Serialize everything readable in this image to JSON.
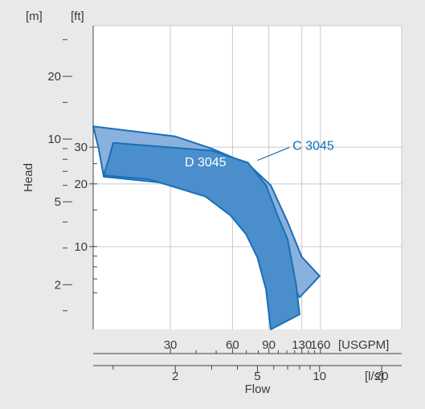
{
  "chart_data": {
    "type": "area",
    "x_axis": {
      "label": "Flow",
      "scale": "log",
      "range_ls": [
        0.8,
        25
      ],
      "primary_unit": "[USGPM]",
      "primary_ticks": [
        30,
        60,
        90,
        130,
        160
      ],
      "secondary_unit": "[l/s]",
      "secondary_ticks": [
        2,
        5,
        10,
        20
      ]
    },
    "y_axis": {
      "label": "Head",
      "scale": "log",
      "range_m": [
        1.22,
        35
      ],
      "primary_unit": "[m]",
      "primary_ticks": [
        2,
        5,
        10,
        20
      ],
      "secondary_unit": "[ft]",
      "secondary_ticks": [
        10,
        20,
        30
      ]
    },
    "grid": true,
    "series": [
      {
        "name": "C 3045",
        "color": "#8ab0dd",
        "edge_color": "#1870b8",
        "polygon_ls_m": [
          [
            0.8,
            11.5
          ],
          [
            2.0,
            10.3
          ],
          [
            3.0,
            9.0
          ],
          [
            4.5,
            7.6
          ],
          [
            5.8,
            6.0
          ],
          [
            7.0,
            4.0
          ],
          [
            8.2,
            2.72
          ],
          [
            10.0,
            2.2
          ],
          [
            8.0,
            1.74
          ],
          [
            7.4,
            2.0
          ],
          [
            6.4,
            3.0
          ],
          [
            5.2,
            4.1
          ],
          [
            4.3,
            4.8
          ],
          [
            3.7,
            5.4
          ],
          [
            2.5,
            5.95
          ],
          [
            0.9,
            6.6
          ],
          [
            0.85,
            9.0
          ]
        ]
      },
      {
        "name": "D 3045",
        "color": "#4a8ecb",
        "edge_color": "#1870b8",
        "polygon_ls_m": [
          [
            1.0,
            9.6
          ],
          [
            3.0,
            8.8
          ],
          [
            4.5,
            7.7
          ],
          [
            5.5,
            6.0
          ],
          [
            6.2,
            4.4
          ],
          [
            7.0,
            3.3
          ],
          [
            7.7,
            2.0
          ],
          [
            8.0,
            1.44
          ],
          [
            5.8,
            1.22
          ],
          [
            5.5,
            1.9
          ],
          [
            5.0,
            2.7
          ],
          [
            4.4,
            3.5
          ],
          [
            3.7,
            4.3
          ],
          [
            2.8,
            5.3
          ],
          [
            1.5,
            6.4
          ],
          [
            0.9,
            6.7
          ],
          [
            0.95,
            8.0
          ]
        ]
      }
    ],
    "annotations": [
      {
        "text": "C 3045",
        "at_ls_m": [
          7.4,
          8.8
        ],
        "pointer_to_ls_m": [
          5.0,
          7.9
        ]
      },
      {
        "text": "D 3045",
        "at_ls_m": [
          2.8,
          7.4
        ]
      }
    ],
    "colors": {
      "background": "#e9e9e9",
      "plot_area": "#ffffff",
      "grid": "#c9c9c9",
      "axis": "#444444",
      "label_blue": "#0f6fb4"
    }
  }
}
